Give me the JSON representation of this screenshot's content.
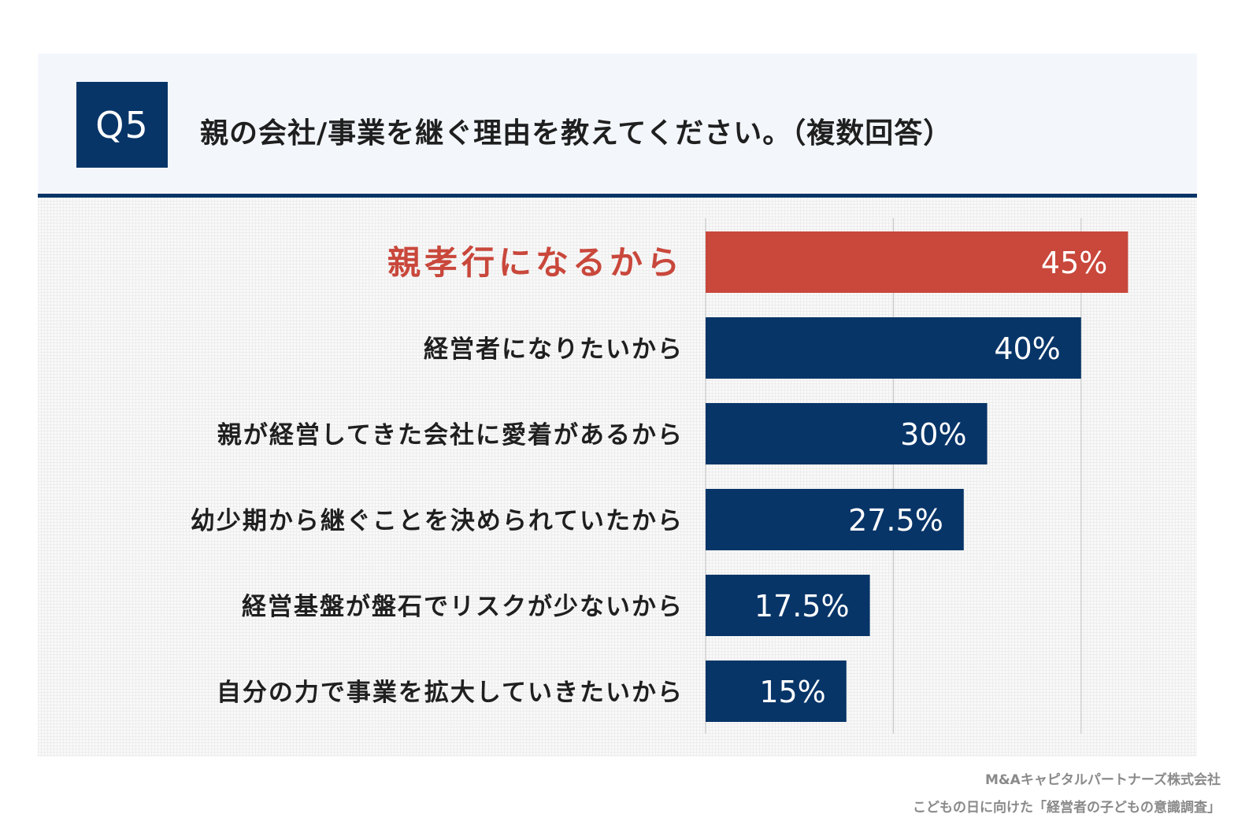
{
  "header": {
    "badge": "Q5",
    "question": "親の会社/事業を継ぐ理由を教えてください。（複数回答）"
  },
  "colors": {
    "primary": "#083568",
    "highlight": "#c9473b",
    "grid": "#c8c8c8"
  },
  "chart_data": {
    "type": "bar",
    "orientation": "horizontal",
    "categories": [
      "親孝行になるから",
      "経営者になりたいから",
      "親が経営してきた会社に愛着があるから",
      "幼少期から継ぐことを決められていたから",
      "経営基盤が盤石でリスクが少ないから",
      "自分の力で事業を拡大していきたいから"
    ],
    "values": [
      45,
      40,
      30,
      27.5,
      17.5,
      15
    ],
    "value_labels": [
      "45%",
      "40%",
      "30%",
      "27.5%",
      "17.5%",
      "15%"
    ],
    "highlight_index": 0,
    "xlim": [
      0,
      50
    ],
    "gridlines": [
      0,
      20,
      40
    ],
    "grid": true,
    "legend": "none"
  },
  "source": {
    "line1": "M&Aキャピタルパートナーズ株式会社",
    "line2": "こどもの日に向けた「経営者の子どもの意識調査」"
  }
}
